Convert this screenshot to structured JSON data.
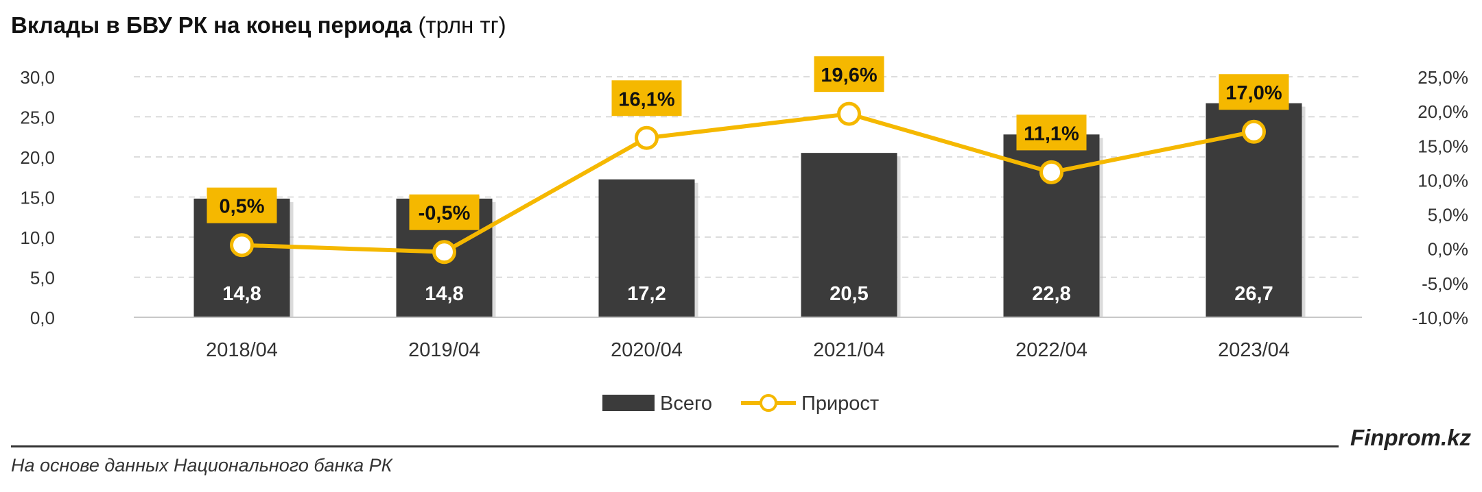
{
  "header": {
    "title": "Вклады в БВУ РК на конец периода",
    "unit": "(трлн тг)"
  },
  "footer": {
    "source": "На основе данных Национального банка РК",
    "brand": "Finprom.kz"
  },
  "chart_data": {
    "type": "bar",
    "categories": [
      "2018/04",
      "2019/04",
      "2020/04",
      "2021/04",
      "2022/04",
      "2023/04"
    ],
    "series": [
      {
        "name": "Всего",
        "type": "bar",
        "axis": "left",
        "values": [
          14.8,
          14.8,
          17.2,
          20.5,
          22.8,
          26.7
        ],
        "labels": [
          "14,8",
          "14,8",
          "17,2",
          "20,5",
          "22,8",
          "26,7"
        ]
      },
      {
        "name": "Прирост",
        "type": "line",
        "axis": "right",
        "values": [
          0.5,
          -0.5,
          16.1,
          19.6,
          11.1,
          17.0
        ],
        "labels": [
          "0,5%",
          "-0,5%",
          "16,1%",
          "19,6%",
          "11,1%",
          "17,0%"
        ]
      }
    ],
    "y_left": {
      "range": [
        0,
        30
      ],
      "ticks": [
        "0,0",
        "5,0",
        "10,0",
        "15,0",
        "20,0",
        "25,0",
        "30,0"
      ]
    },
    "y_right": {
      "range": [
        -10,
        25
      ],
      "ticks": [
        "-10,0%",
        "-5,0%",
        "0,0%",
        "5,0%",
        "10,0%",
        "15,0%",
        "20,0%",
        "25,0%"
      ]
    },
    "grid": true,
    "legend": "bottom-center",
    "colors": {
      "bar": "#3b3b3b",
      "line": "#f5b800",
      "label_box": "#f5b800",
      "grid": "#d0d0d0"
    }
  }
}
